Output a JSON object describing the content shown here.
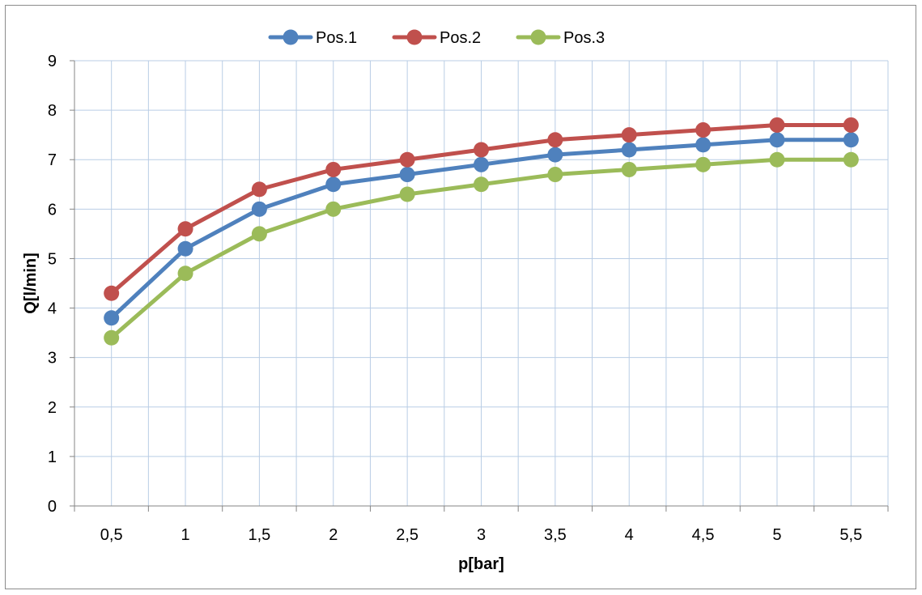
{
  "chart_data": {
    "type": "line",
    "title": "",
    "xlabel": "p[bar]",
    "ylabel": "Q[l/min]",
    "categories": [
      "0,5",
      "1",
      "1,5",
      "2",
      "2,5",
      "3",
      "3,5",
      "4",
      "4,5",
      "5",
      "5,5"
    ],
    "ylim": [
      0,
      9
    ],
    "yticks": [
      0,
      1,
      2,
      3,
      4,
      5,
      6,
      7,
      8,
      9
    ],
    "grid": true,
    "legend_position": "top",
    "series": [
      {
        "name": "Pos.1",
        "color": "#4f81bd",
        "values": [
          3.8,
          5.2,
          6.0,
          6.5,
          6.7,
          6.9,
          7.1,
          7.2,
          7.3,
          7.4,
          7.4
        ]
      },
      {
        "name": "Pos.2",
        "color": "#c0504d",
        "values": [
          4.3,
          5.6,
          6.4,
          6.8,
          7.0,
          7.2,
          7.4,
          7.5,
          7.6,
          7.7,
          7.7
        ]
      },
      {
        "name": "Pos.3",
        "color": "#9bbb59",
        "values": [
          3.4,
          4.7,
          5.5,
          6.0,
          6.3,
          6.5,
          6.7,
          6.8,
          6.9,
          7.0,
          7.0
        ]
      }
    ],
    "colors": {
      "grid": "#b9cde5",
      "axis": "#868686"
    }
  }
}
